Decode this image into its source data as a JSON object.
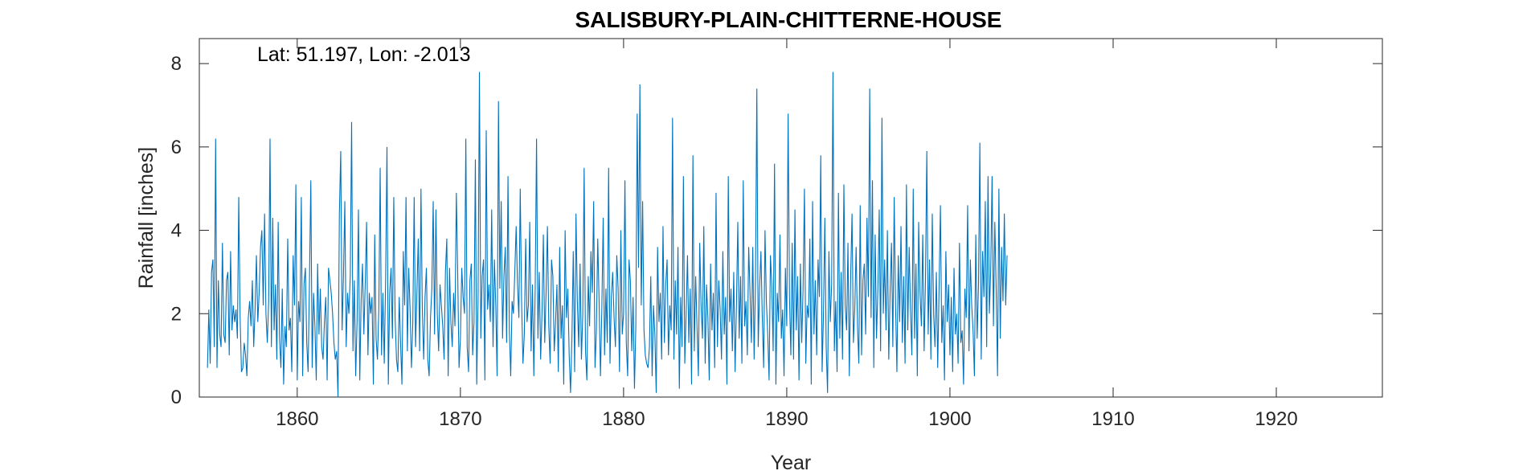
{
  "chart_data": {
    "type": "line",
    "title": "SALISBURY-PLAIN-CHITTERNE-HOUSE",
    "annotation": "Lat: 51.197, Lon: -2.013",
    "xlabel": "Year",
    "ylabel": "Rainfall [inches]",
    "xlim": [
      1854.0,
      1926.5
    ],
    "ylim": [
      0,
      8.6
    ],
    "xticks": [
      1860,
      1870,
      1880,
      1890,
      1900,
      1910,
      1920
    ],
    "yticks": [
      0,
      2,
      4,
      6,
      8
    ],
    "grid": false,
    "line_color": "#0072BD",
    "series": [
      {
        "values_note_monthly_from": 1854.5,
        "values": [
          0.7,
          2.1,
          0.8,
          3.0,
          3.3,
          1.2,
          6.2,
          0.7,
          2.8,
          1.5,
          1.2,
          3.7,
          1.5,
          1.3,
          2.8,
          3.0,
          1.0,
          3.5,
          1.6,
          2.2,
          1.8,
          2.1,
          1.4,
          4.8,
          1.9,
          0.6,
          0.7,
          1.3,
          1.0,
          0.5,
          1.9,
          2.3,
          1.7,
          2.8,
          1.2,
          2.1,
          3.4,
          1.8,
          2.5,
          3.6,
          4.0,
          2.2,
          4.4,
          2.0,
          1.3,
          2.3,
          6.2,
          1.2,
          4.3,
          1.6,
          2.7,
          0.9,
          4.2,
          1.4,
          0.7,
          2.6,
          0.3,
          1.7,
          1.2,
          3.8,
          1.6,
          1.9,
          0.6,
          3.4,
          2.2,
          5.1,
          0.4,
          2.3,
          1.8,
          4.8,
          0.5,
          2.7,
          3.1,
          1.3,
          0.6,
          2.8,
          5.2,
          0.7,
          2.5,
          1.7,
          0.4,
          3.2,
          1.5,
          2.6,
          1.2,
          0.9,
          1.8,
          2.4,
          0.4,
          3.1,
          2.8,
          2.5,
          2.0,
          1.3,
          0.9,
          1.1,
          0.0,
          4.4,
          5.9,
          1.6,
          2.9,
          4.7,
          1.2,
          2.5,
          2.0,
          2.9,
          6.6,
          1.1,
          2.8,
          0.5,
          1.8,
          4.5,
          0.4,
          2.3,
          3.2,
          1.5,
          2.7,
          4.2,
          1.0,
          2.5,
          2.0,
          2.4,
          0.3,
          3.9,
          1.4,
          0.9,
          2.1,
          5.5,
          1.0,
          2.5,
          0.8,
          2.8,
          6.0,
          0.3,
          2.5,
          3.1,
          1.4,
          4.8,
          1.9,
          0.9,
          0.6,
          2.4,
          1.3,
          0.3,
          3.5,
          2.2,
          4.8,
          1.1,
          3.1,
          2.1,
          0.7,
          1.8,
          4.8,
          1.2,
          2.5,
          3.8,
          1.1,
          5.0,
          2.1,
          0.9,
          2.4,
          3.1,
          0.9,
          0.5,
          1.9,
          2.6,
          4.7,
          1.5,
          4.5,
          2.0,
          1.1,
          2.7,
          2.2,
          1.7,
          0.9,
          3.0,
          3.8,
          0.5,
          3.1,
          1.8,
          1.2,
          2.5,
          1.7,
          4.9,
          3.0,
          0.7,
          1.4,
          3.1,
          2.4,
          2.0,
          6.2,
          1.2,
          0.6,
          2.8,
          3.2,
          1.0,
          1.8,
          5.7,
          0.3,
          2.4,
          7.8,
          1.4,
          2.9,
          3.3,
          0.4,
          6.4,
          2.1,
          2.7,
          1.8,
          4.5,
          1.2,
          3.3,
          2.2,
          0.5,
          7.1,
          2.6,
          4.7,
          1.4,
          2.9,
          3.6,
          1.3,
          5.3,
          1.6,
          0.5,
          2.3,
          2.0,
          3.0,
          4.1,
          2.7,
          1.9,
          5.0,
          2.3,
          0.8,
          1.5,
          3.8,
          1.8,
          2.2,
          4.2,
          1.1,
          2.7,
          0.5,
          2.6,
          6.2,
          1.4,
          3.0,
          0.9,
          2.0,
          3.9,
          1.3,
          2.5,
          4.1,
          1.7,
          0.8,
          3.3,
          2.9,
          1.1,
          1.8,
          2.7,
          0.6,
          3.6,
          1.4,
          2.2,
          0.3,
          4.0,
          1.9,
          2.6,
          1.0,
          0.1,
          1.4,
          3.5,
          0.6,
          4.4,
          2.3,
          1.2,
          3.2,
          0.9,
          2.0,
          5.5,
          1.1,
          0.4,
          2.9,
          1.7,
          3.5,
          2.5,
          4.7,
          0.7,
          1.6,
          3.8,
          2.3,
          0.5,
          2.1,
          4.3,
          1.0,
          2.6,
          1.3,
          5.5,
          0.8,
          2.4,
          3.0,
          1.9,
          1.2,
          3.4,
          2.6,
          0.6,
          4.0,
          1.5,
          2.0,
          5.2,
          1.3,
          0.5,
          3.3,
          2.8,
          1.1,
          2.4,
          0.2,
          1.7,
          6.8,
          3.1,
          7.5,
          2.2,
          4.7,
          1.6,
          1.0,
          0.8,
          0.7,
          1.2,
          2.9,
          0.5,
          2.2,
          1.5,
          0.1,
          3.6,
          1.8,
          2.5,
          0.9,
          4.1,
          1.3,
          2.7,
          3.3,
          1.0,
          2.2,
          1.6,
          6.7,
          0.9,
          2.8,
          1.5,
          3.6,
          0.2,
          2.4,
          1.2,
          5.3,
          0.8,
          2.0,
          3.4,
          1.3,
          2.6,
          0.3,
          5.8,
          1.1,
          2.9,
          1.7,
          0.5,
          3.7,
          2.2,
          1.4,
          4.1,
          0.8,
          2.7,
          1.9,
          0.4,
          3.2,
          1.6,
          2.5,
          0.7,
          4.9,
          1.2,
          2.8,
          2.1,
          0.9,
          3.5,
          1.5,
          2.4,
          0.3,
          5.3,
          1.8,
          2.6,
          1.1,
          3.0,
          0.6,
          2.2,
          4.2,
          1.4,
          2.9,
          0.8,
          5.2,
          1.7,
          2.3,
          1.0,
          3.6,
          2.5,
          1.3,
          3.6,
          0.9,
          2.8,
          7.4,
          1.2,
          2.6,
          3.5,
          1.9,
          0.7,
          4.0,
          2.3,
          1.5,
          0.4,
          3.4,
          2.7,
          1.1,
          5.6,
          0.3,
          2.5,
          1.8,
          3.9,
          1.4,
          2.1,
          0.5,
          3.1,
          1.7,
          6.8,
          2.4,
          1.0,
          3.7,
          0.9,
          4.5,
          1.6,
          2.9,
          0.4,
          3.2,
          1.3,
          2.6,
          5.0,
          0.8,
          2.2,
          1.9,
          3.8,
          0.3,
          4.7,
          1.5,
          2.8,
          1.0,
          3.3,
          2.4,
          5.8,
          0.6,
          2.0,
          4.3,
          1.2,
          0.1,
          3.5,
          1.8,
          2.7,
          7.8,
          1.1,
          2.3,
          0.6,
          4.9,
          1.4,
          3.0,
          0.9,
          5.1,
          2.2,
          1.6,
          3.7,
          0.5,
          2.9,
          4.4,
          1.3,
          2.1,
          3.6,
          1.7,
          0.8,
          4.6,
          1.0,
          2.8,
          3.2,
          1.5,
          4.3,
          2.4,
          7.4,
          1.9,
          5.2,
          0.7,
          3.9,
          1.4,
          2.6,
          4.5,
          1.1,
          6.7,
          2.0,
          3.3,
          1.6,
          4.0,
          0.9,
          2.5,
          3.7,
          1.2,
          4.8,
          2.2,
          0.6,
          3.4,
          1.8,
          4.1,
          1.3,
          2.9,
          0.8,
          5.1,
          1.6,
          3.6,
          2.1,
          1.0,
          5.0,
          1.4,
          3.2,
          0.5,
          4.2,
          2.5,
          1.7,
          3.9,
          1.1,
          2.8,
          5.9,
          1.5,
          3.3,
          0.9,
          4.4,
          2.0,
          1.2,
          3.0,
          0.7,
          2.6,
          4.6,
          1.3,
          2.2,
          0.4,
          3.5,
          1.8,
          2.7,
          1.0,
          2.4,
          0.6,
          3.1,
          1.5,
          2.0,
          0.8,
          3.7,
          1.3,
          1.6,
          0.3,
          2.6,
          1.9,
          4.6,
          1.1,
          3.3,
          2.2,
          1.6,
          0.5,
          3.9,
          1.4,
          2.7,
          6.1,
          0.9,
          3.5,
          2.4,
          4.7,
          1.2,
          5.3,
          2.0,
          3.1,
          5.3,
          1.7,
          4.2,
          2.6,
          0.5,
          5.0,
          1.4,
          3.6,
          2.3,
          4.4,
          2.2,
          3.4
        ]
      }
    ]
  }
}
